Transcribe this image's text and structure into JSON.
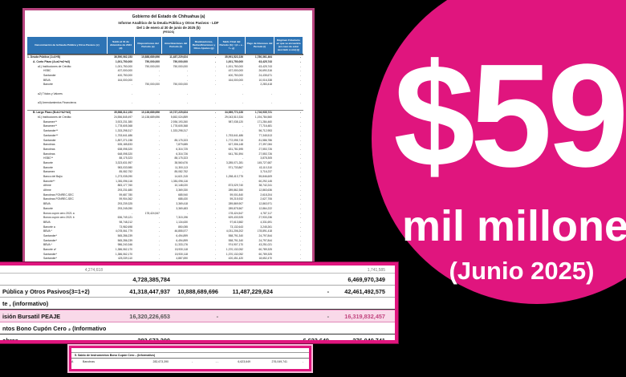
{
  "colors": {
    "accent_pink": "#E0157E",
    "doc_border": "#B8447F",
    "header_blue": "#2E74B5",
    "pink_row_bg": "#F9D9E9"
  },
  "badge": {
    "amount": "$59",
    "unit": "mil millones",
    "period": "(Junio 2025)"
  },
  "document": {
    "title_lines": {
      "t1": "Gobierno del Estado de Chihuahua (a)",
      "t2": "Informe Analítico de la Deuda Pública y Otros Pasivos - LDF",
      "t3": "Del 1 de enero al 30 de junio de 2025 (b)",
      "t4": "(PESOS)"
    },
    "columns": [
      "Denominación de la Deuda Pública y Otros Pasivos (c)",
      "Saldo al 31 de diciembre de 2024 (d)",
      "Disposiciones del Periodo (e)",
      "Amortizaciones del Periodo (f)",
      "Revaluaciones, Reclasificaciones y Otros Ajustes (g)",
      "Saldo Final del Periodo (h) = (d + e - f + g)",
      "Pago de Intereses del Periodo (i)",
      "Régimen Fiduciario en que se encuentra (en caso de estar asociado a uno) (j)"
    ],
    "rows": [
      {
        "l": "1. Deuda Pública (1=A+B)",
        "b": 1,
        "s": 1,
        "i": 0,
        "v": [
          "36,590,062,153",
          "10,888,689,696",
          "11,487,229,624",
          "-",
          "35,991,522,226",
          "1,780,361,464",
          "-"
        ]
      },
      {
        "l": "A. Corto Plazo (A=a1+a2+a3)",
        "b": 1,
        "i": 1,
        "v": [
          "1,001,750,000",
          "750,000,000",
          "750,000,000",
          "-",
          "1,001,750,000",
          "63,425,743",
          "-"
        ]
      },
      {
        "l": "a1) Instituciones de Crédito:",
        "i": 2,
        "v": [
          "1,001,750,000",
          "750,000,000",
          "750,000,000",
          "-",
          "1,001,750,000",
          "63,425,743",
          "-"
        ]
      },
      {
        "l": "HSBC",
        "i": 3,
        "v": [
          "437,000,000",
          "-",
          "-",
          "-",
          "437,000,000",
          "26,690,316",
          "-"
        ]
      },
      {
        "l": "Santander",
        "i": 3,
        "v": [
          "400,750,000",
          "-",
          "-",
          "-",
          "400,750,000",
          "24,435,671",
          "-"
        ]
      },
      {
        "l": "BBVA",
        "i": 3,
        "v": [
          "164,000,000",
          "-",
          "-",
          "-",
          "164,000,000",
          "10,016,338",
          "-"
        ]
      },
      {
        "l": "Banorte",
        "i": 3,
        "v": [
          "-",
          "750,000,000",
          "750,000,000",
          "-",
          "-",
          "2,283,418",
          "-"
        ]
      },
      {
        "l": "",
        "i": 0,
        "v": [
          "",
          "",
          "",
          "",
          "",
          "",
          ""
        ]
      },
      {
        "l": "a2) Títulos y Valores",
        "i": 2,
        "v": [
          "-",
          "-",
          "-",
          "-",
          "-",
          "-",
          "-"
        ]
      },
      {
        "l": "",
        "i": 0,
        "v": [
          "",
          "",
          "",
          "",
          "",
          "",
          ""
        ]
      },
      {
        "l": "a3) Arrendamientos Financieros",
        "i": 2,
        "v": [
          "-",
          "-",
          "-",
          "-",
          "-",
          "-",
          "-"
        ]
      },
      {
        "l": "",
        "i": 0,
        "v": [
          "",
          "",
          "",
          "",
          "",
          "",
          ""
        ]
      },
      {
        "l": "B. Largo Plazo (B=b1+b2+b3)",
        "b": 1,
        "s": 1,
        "i": 1,
        "v": [
          "35,588,312,153",
          "10,138,689,696",
          "10,737,229,624",
          "-",
          "34,989,772,226",
          "1,716,935,721",
          "-"
        ]
      },
      {
        "l": "b1) Instituciones de Crédito:",
        "i": 2,
        "v": [
          "24,556,845,497",
          "10,138,689,696",
          "5,652,024,859",
          "-",
          "29,043,510,334",
          "1,194,784,560",
          "-"
        ]
      },
      {
        "l": "Banamex**",
        "i": 3,
        "v": [
          "3,923,231,380",
          "-",
          "2,936,193,260",
          "-",
          "987,038,120",
          "171,284,460",
          "-"
        ]
      },
      {
        "l": "Banamex**",
        "i": 3,
        "v": [
          "1,778,605,368",
          "-",
          "1,778,605,368",
          "-",
          "-",
          "77,716,481",
          "-"
        ]
      },
      {
        "l": "Santander**",
        "i": 3,
        "v": [
          "1,333,298,317",
          "-",
          "1,333,298,317",
          "-",
          "-",
          "56,712,953",
          "-"
        ]
      },
      {
        "l": "Santander**",
        "i": 3,
        "v": [
          "1,753,641,486",
          "-",
          "-",
          "-",
          "1,753,641,486",
          "77,345,513",
          "-"
        ]
      },
      {
        "l": "Santander",
        "i": 3,
        "v": [
          "1,857,271,038",
          "-",
          "85,175,323",
          "-",
          "1,772,095,715",
          "81,586,786",
          "-"
        ]
      },
      {
        "l": "Banobras",
        "i": 3,
        "v": [
          "635,185,833",
          "-",
          "7,879,685",
          "-",
          "627,306,148",
          "27,397,084",
          "-"
        ]
      },
      {
        "l": "Banobras",
        "i": 3,
        "v": [
          "638,098,320",
          "-",
          "6,316,725",
          "-",
          "631,781,595",
          "27,553,726",
          "-"
        ]
      },
      {
        "l": "Banobras",
        "i": 3,
        "v": [
          "648,098,320",
          "-",
          "6,316,726",
          "-",
          "641,781,594",
          "27,553,726",
          "-"
        ]
      },
      {
        "l": "HSBC**",
        "i": 3,
        "v": [
          "88,175,323",
          "-",
          "88,175,323",
          "-",
          "-",
          "3,878,305",
          "-"
        ]
      },
      {
        "l": "Banorte",
        "i": 3,
        "v": [
          "3,323,631,957",
          "-",
          "38,560,676",
          "-",
          "3,285,071,281",
          "145,727,687",
          "-"
        ]
      },
      {
        "l": "Banorte",
        "i": 3,
        "v": [
          "983,033,980",
          "-",
          "11,300,113",
          "-",
          "971,733,867",
          "43,110,310",
          "-"
        ]
      },
      {
        "l": "Banamex",
        "i": 3,
        "v": [
          "85,082,752",
          "-",
          "85,082,752",
          "-",
          "-",
          "3,716,237",
          "-"
        ]
      },
      {
        "l": "Banco del Bajío",
        "i": 3,
        "v": [
          "1,273,035,090",
          "-",
          "14,621,315",
          "-",
          "1,258,413,775",
          "55,846,609",
          "-"
        ]
      },
      {
        "l": "Banorte**",
        "i": 3,
        "v": [
          "1,381,096,116",
          "-",
          "1,381,096,116",
          "-",
          "-",
          "60,292,145",
          "-"
        ]
      },
      {
        "l": "Afirme",
        "i": 3,
        "v": [
          "883,177,760",
          "-",
          "10,148,020",
          "-",
          "873,029,740",
          "38,742,241",
          "-"
        ]
      },
      {
        "l": "Afirme",
        "i": 3,
        "v": [
          "293,231,680",
          "-",
          "3,369,330",
          "-",
          "289,862,350",
          "12,863,636",
          "-"
        ]
      },
      {
        "l": "Banobras FONREC-SEC",
        "i": 3,
        "v": [
          "59,687,780",
          "-",
          "685,940",
          "-",
          "59,001,840",
          "2,618,204",
          "-"
        ]
      },
      {
        "l": "Banobras FONREC-SEC",
        "i": 3,
        "v": [
          "59,904,362",
          "-",
          "688,430",
          "-",
          "59,215,932",
          "2,627,706",
          "-"
        ]
      },
      {
        "l": "BBVA",
        "i": 3,
        "v": [
          "293,239,325",
          "-",
          "3,369,418",
          "-",
          "289,869,907",
          "12,863,971",
          "-"
        ]
      },
      {
        "l": "Banorte",
        "i": 3,
        "v": [
          "293,245,050",
          "-",
          "3,369,483",
          "-",
          "289,875,567",
          "12,864,222",
          "-"
        ]
      },
      {
        "l": "Bonos cupón cero 2021 a",
        "i": 3,
        "v": [
          "-",
          "178,424,547",
          "-",
          "-",
          "178,424,547",
          "4,787,117",
          "-"
        ]
      },
      {
        "l": "Bonos cupón cero 2021 b",
        "i": 3,
        "v": [
          "636,749,121",
          "-",
          "7,315,196",
          "-",
          "629,433,925",
          "27,933,236",
          "-"
        ]
      },
      {
        "l": "BBVA",
        "i": 3,
        "v": [
          "98,748,212",
          "-",
          "1,134,630",
          "-",
          "97,613,582",
          "4,331,691",
          "-"
        ]
      },
      {
        "l": "Banorte a",
        "i": 3,
        "v": [
          "73,982,698",
          "-",
          "850,055",
          "-",
          "73,132,643",
          "3,245,261",
          "-"
        ]
      },
      {
        "l": "BBVA *",
        "i": 3,
        "v": [
          "4,078,061,779",
          "-",
          "46,855,577",
          "-",
          "4,031,206,202",
          "178,891,418",
          "-"
        ]
      },
      {
        "l": "Santander*",
        "i": 3,
        "v": [
          "565,286,239",
          "-",
          "6,494,899",
          "-",
          "558,791,340",
          "24,797,844",
          "-"
        ]
      },
      {
        "l": "Santander*",
        "i": 3,
        "v": [
          "565,286,239",
          "-",
          "6,494,899",
          "-",
          "558,791,340",
          "24,797,844",
          "-"
        ]
      },
      {
        "l": "BBVA *",
        "i": 3,
        "v": [
          "986,240,346",
          "-",
          "11,333,176",
          "-",
          "974,907,170",
          "43,251,021",
          "-"
        ]
      },
      {
        "l": "Banorte a*",
        "i": 3,
        "v": [
          "1,386,062,170",
          "-",
          "15,930,118",
          "-",
          "1,370,132,052",
          "60,789,325",
          "-"
        ]
      },
      {
        "l": "Santander*",
        "i": 3,
        "v": [
          "1,386,062,170",
          "-",
          "15,930,118",
          "-",
          "1,370,132,052",
          "60,789,325",
          "-"
        ]
      },
      {
        "l": "Santander*",
        "i": 3,
        "v": [
          "425,339,110",
          "-",
          "4,887,690",
          "-",
          "420,451,420",
          "18,652,470",
          "-"
        ]
      },
      {
        "l": "b2) Títulos y Valores:",
        "i": 2,
        "v": [
          "11,031,466,656",
          "-",
          "5,085,204,765",
          "-",
          "5,946,261,891",
          "522,151,161",
          "-"
        ]
      }
    ]
  },
  "zoom_panel": {
    "partial_row": [
      "4,274,618",
      "",
      "",
      "",
      "",
      "1,741,585"
    ],
    "rows": [
      {
        "label": "",
        "type": "plain",
        "c": [
          "4,728,385,784",
          "",
          "",
          "",
          "6,469,970,349"
        ]
      },
      {
        "label": "Pública y Otros Pasivos(3=1+2)",
        "type": "plain",
        "c": [
          "41,318,447,937",
          "10,888,689,696",
          "11,487,229,624",
          "-",
          "42,461,492,575"
        ]
      },
      {
        "label": "te , (informativo)",
        "type": "sect",
        "c": [
          "",
          "",
          "",
          "",
          ""
        ]
      },
      {
        "label": "isión Bursatil PEAJE",
        "type": "pinkrow",
        "c": [
          "16,320,226,653",
          "-",
          "",
          "-",
          "16,319,832,457"
        ]
      },
      {
        "label": "ntos Bono Cupón Cero ₂ (Informativo)",
        "type": "sect",
        "c": [
          "",
          "",
          "",
          "",
          ""
        ]
      },
      {
        "label": "obras",
        "type": "plain2",
        "c": [
          "282,673,390",
          "-",
          "-",
          "6,623,649",
          "276,049,741"
        ]
      }
    ]
  },
  "footnote_panel": {
    "header": "5. Saldo de Instrumentos Bono Cupón Cero ₂ (Informativo)",
    "row": [
      "A",
      "Banobras",
      "282,673,390",
      "-",
      "- -",
      "6,623,649",
      "276,049,741",
      "-"
    ]
  }
}
